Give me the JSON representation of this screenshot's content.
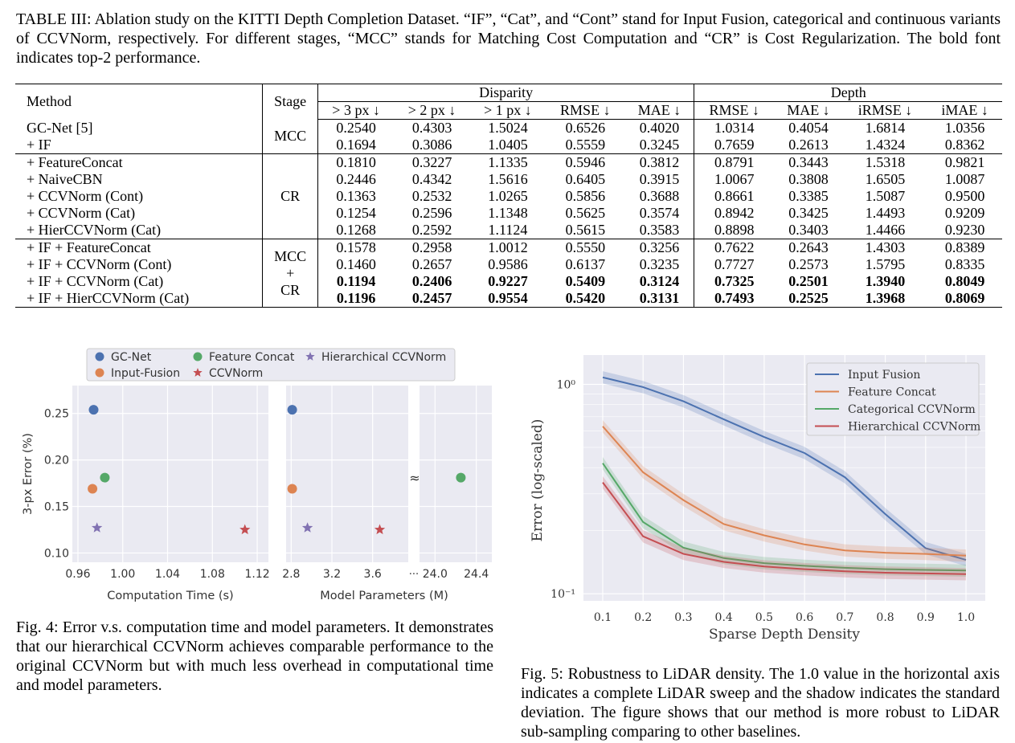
{
  "table": {
    "caption_label": "TABLE III:",
    "caption_text": "Ablation study on the KITTI Depth Completion Dataset. “IF”, “Cat”, and “Cont” stand for Input Fusion, categorical and continuous variants of CCVNorm, respectively. For different stages, “MCC” stands for Matching Cost Computation and “CR” is Cost Regularization. The bold font indicates top-2 performance.",
    "headers": {
      "method": "Method",
      "stage": "Stage",
      "disparity": "Disparity",
      "depth": "Depth",
      "cols": [
        "> 3 px ↓",
        "> 2 px ↓",
        "> 1 px ↓",
        "RMSE ↓",
        "MAE ↓",
        "RMSE ↓",
        "MAE ↓",
        "iRMSE ↓",
        "iMAE ↓"
      ]
    },
    "stages": {
      "mcc": "MCC",
      "cr": "CR",
      "combo": [
        "MCC",
        "+",
        "CR"
      ]
    },
    "rows": [
      {
        "method": "GC-Net [5]",
        "values": [
          "0.2540",
          "0.4303",
          "1.5024",
          "0.6526",
          "0.4020",
          "1.0314",
          "0.4054",
          "1.6814",
          "1.0356"
        ]
      },
      {
        "method": "+ IF",
        "values": [
          "0.1694",
          "0.3086",
          "1.0405",
          "0.5559",
          "0.3245",
          "0.7659",
          "0.2613",
          "1.4324",
          "0.8362"
        ]
      },
      {
        "method": "+ FeatureConcat",
        "values": [
          "0.1810",
          "0.3227",
          "1.1335",
          "0.5946",
          "0.3812",
          "0.8791",
          "0.3443",
          "1.5318",
          "0.9821"
        ]
      },
      {
        "method": "+ NaiveCBN",
        "values": [
          "0.2446",
          "0.4342",
          "1.5616",
          "0.6405",
          "0.3915",
          "1.0067",
          "0.3808",
          "1.6505",
          "1.0087"
        ]
      },
      {
        "method": "+ CCVNorm (Cont)",
        "values": [
          "0.1363",
          "0.2532",
          "1.0265",
          "0.5856",
          "0.3688",
          "0.8661",
          "0.3385",
          "1.5087",
          "0.9500"
        ]
      },
      {
        "method": "+ CCVNorm (Cat)",
        "values": [
          "0.1254",
          "0.2596",
          "1.1348",
          "0.5625",
          "0.3574",
          "0.8942",
          "0.3425",
          "1.4493",
          "0.9209"
        ]
      },
      {
        "method": "+ HierCCVNorm (Cat)",
        "values": [
          "0.1268",
          "0.2592",
          "1.1124",
          "0.5615",
          "0.3583",
          "0.8898",
          "0.3403",
          "1.4466",
          "0.9230"
        ]
      },
      {
        "method": "+ IF + FeatureConcat",
        "values": [
          "0.1578",
          "0.2958",
          "1.0012",
          "0.5550",
          "0.3256",
          "0.7622",
          "0.2643",
          "1.4303",
          "0.8389"
        ]
      },
      {
        "method": "+ IF + CCVNorm (Cont)",
        "values": [
          "0.1460",
          "0.2657",
          "0.9586",
          "0.6137",
          "0.3235",
          "0.7727",
          "0.2573",
          "1.5795",
          "0.8335"
        ]
      },
      {
        "method": "+ IF + CCVNorm (Cat)",
        "values": [
          "0.1194",
          "0.2406",
          "0.9227",
          "0.5409",
          "0.3124",
          "0.7325",
          "0.2501",
          "1.3940",
          "0.8049"
        ]
      },
      {
        "method": "+ IF + HierCCVNorm (Cat)",
        "values": [
          "0.1196",
          "0.2457",
          "0.9554",
          "0.5420",
          "0.3131",
          "0.7493",
          "0.2525",
          "1.3968",
          "0.8069"
        ]
      }
    ]
  },
  "fig4": {
    "caption_label": "Fig. 4:",
    "caption_text": "Error v.s. computation time and model parameters. It demonstrates that our hierarchical CCVNorm achieves comparable performance to the original CCVNorm but with much less overhead in computational time and model parameters."
  },
  "fig5": {
    "caption_label": "Fig. 5:",
    "caption_text": "Robustness to LiDAR density. The 1.0 value in the horizontal axis indicates a complete LiDAR sweep and the shadow indicates the standard deviation. The figure shows that our method is more robust to LiDAR sub-sampling comparing to other baselines."
  },
  "chart_data": [
    {
      "type": "scatter",
      "xlabel": "Computation Time (s)",
      "ylabel": "3-px Error (%)",
      "xlim": [
        0.955,
        1.13
      ],
      "ylim": [
        0.09,
        0.28
      ],
      "xticks": [
        "0.96",
        "1.00",
        "1.04",
        "1.08",
        "1.12"
      ],
      "yticks": [
        "0.10",
        "0.15",
        "0.20",
        "0.25"
      ],
      "grid": true,
      "legend_position": "top",
      "series": [
        {
          "name": "GC-Net",
          "marker": "circle",
          "color": "#4C72B0",
          "x": [
            0.974
          ],
          "y": [
            0.254
          ]
        },
        {
          "name": "Input-Fusion",
          "marker": "circle",
          "color": "#DD8452",
          "x": [
            0.973
          ],
          "y": [
            0.169
          ]
        },
        {
          "name": "Feature Concat",
          "marker": "circle",
          "color": "#55A868",
          "x": [
            0.984
          ],
          "y": [
            0.181
          ]
        },
        {
          "name": "CCVNorm",
          "marker": "star",
          "color": "#C44E52",
          "x": [
            1.109
          ],
          "y": [
            0.125
          ]
        },
        {
          "name": "Hierarchical CCVNorm",
          "marker": "star",
          "color": "#8172B2",
          "x": [
            0.977
          ],
          "y": [
            0.127
          ]
        }
      ]
    },
    {
      "type": "scatter",
      "xlabel": "Model Parameters (M)",
      "xticks_left": [
        "2.8",
        "3.2",
        "3.6"
      ],
      "xticks_right": [
        "24.0",
        "24.4"
      ],
      "broken_axis": true,
      "break_symbols": [
        "···",
        "≈"
      ],
      "ylim": [
        0.09,
        0.28
      ],
      "grid": true,
      "series": [
        {
          "name": "GC-Net",
          "marker": "circle",
          "color": "#4C72B0",
          "x": [
            2.81
          ],
          "y": [
            0.254
          ]
        },
        {
          "name": "Input-Fusion",
          "marker": "circle",
          "color": "#DD8452",
          "x": [
            2.81
          ],
          "y": [
            0.169
          ]
        },
        {
          "name": "Feature Concat",
          "marker": "circle",
          "color": "#55A868",
          "x": [
            24.25
          ],
          "y": [
            0.181
          ]
        },
        {
          "name": "CCVNorm",
          "marker": "star",
          "color": "#C44E52",
          "x": [
            3.67
          ],
          "y": [
            0.125
          ]
        },
        {
          "name": "Hierarchical CCVNorm",
          "marker": "star",
          "color": "#8172B2",
          "x": [
            2.96
          ],
          "y": [
            0.127
          ]
        }
      ]
    },
    {
      "type": "line",
      "xlabel": "Sparse Depth Density",
      "ylabel": "Error (log-scaled)",
      "y_scale": "log",
      "ylim": [
        0.1,
        1.35
      ],
      "yticks": [
        "10⁰",
        "10⁻¹"
      ],
      "x": [
        0.1,
        0.2,
        0.3,
        0.4,
        0.5,
        0.6,
        0.7,
        0.8,
        0.9,
        1.0
      ],
      "xticks": [
        "0.1",
        "0.2",
        "0.3",
        "0.4",
        "0.5",
        "0.6",
        "0.7",
        "0.8",
        "0.9",
        "1.0"
      ],
      "grid": true,
      "legend_position": "top-right",
      "shaded_std": true,
      "series": [
        {
          "name": "Input Fusion",
          "color": "#4C72B0",
          "values": [
            1.08,
            0.97,
            0.83,
            0.68,
            0.56,
            0.47,
            0.36,
            0.24,
            0.165,
            0.145
          ]
        },
        {
          "name": "Feature Concat",
          "color": "#DD8452",
          "values": [
            0.63,
            0.38,
            0.28,
            0.215,
            0.19,
            0.172,
            0.161,
            0.157,
            0.155,
            0.152
          ]
        },
        {
          "name": "Categorical CCVNorm",
          "color": "#55A868",
          "values": [
            0.42,
            0.22,
            0.166,
            0.148,
            0.14,
            0.136,
            0.133,
            0.131,
            0.13,
            0.129
          ]
        },
        {
          "name": "Hierarchical CCVNorm",
          "color": "#C44E52",
          "values": [
            0.34,
            0.188,
            0.155,
            0.142,
            0.135,
            0.131,
            0.128,
            0.126,
            0.125,
            0.124
          ]
        }
      ]
    }
  ]
}
